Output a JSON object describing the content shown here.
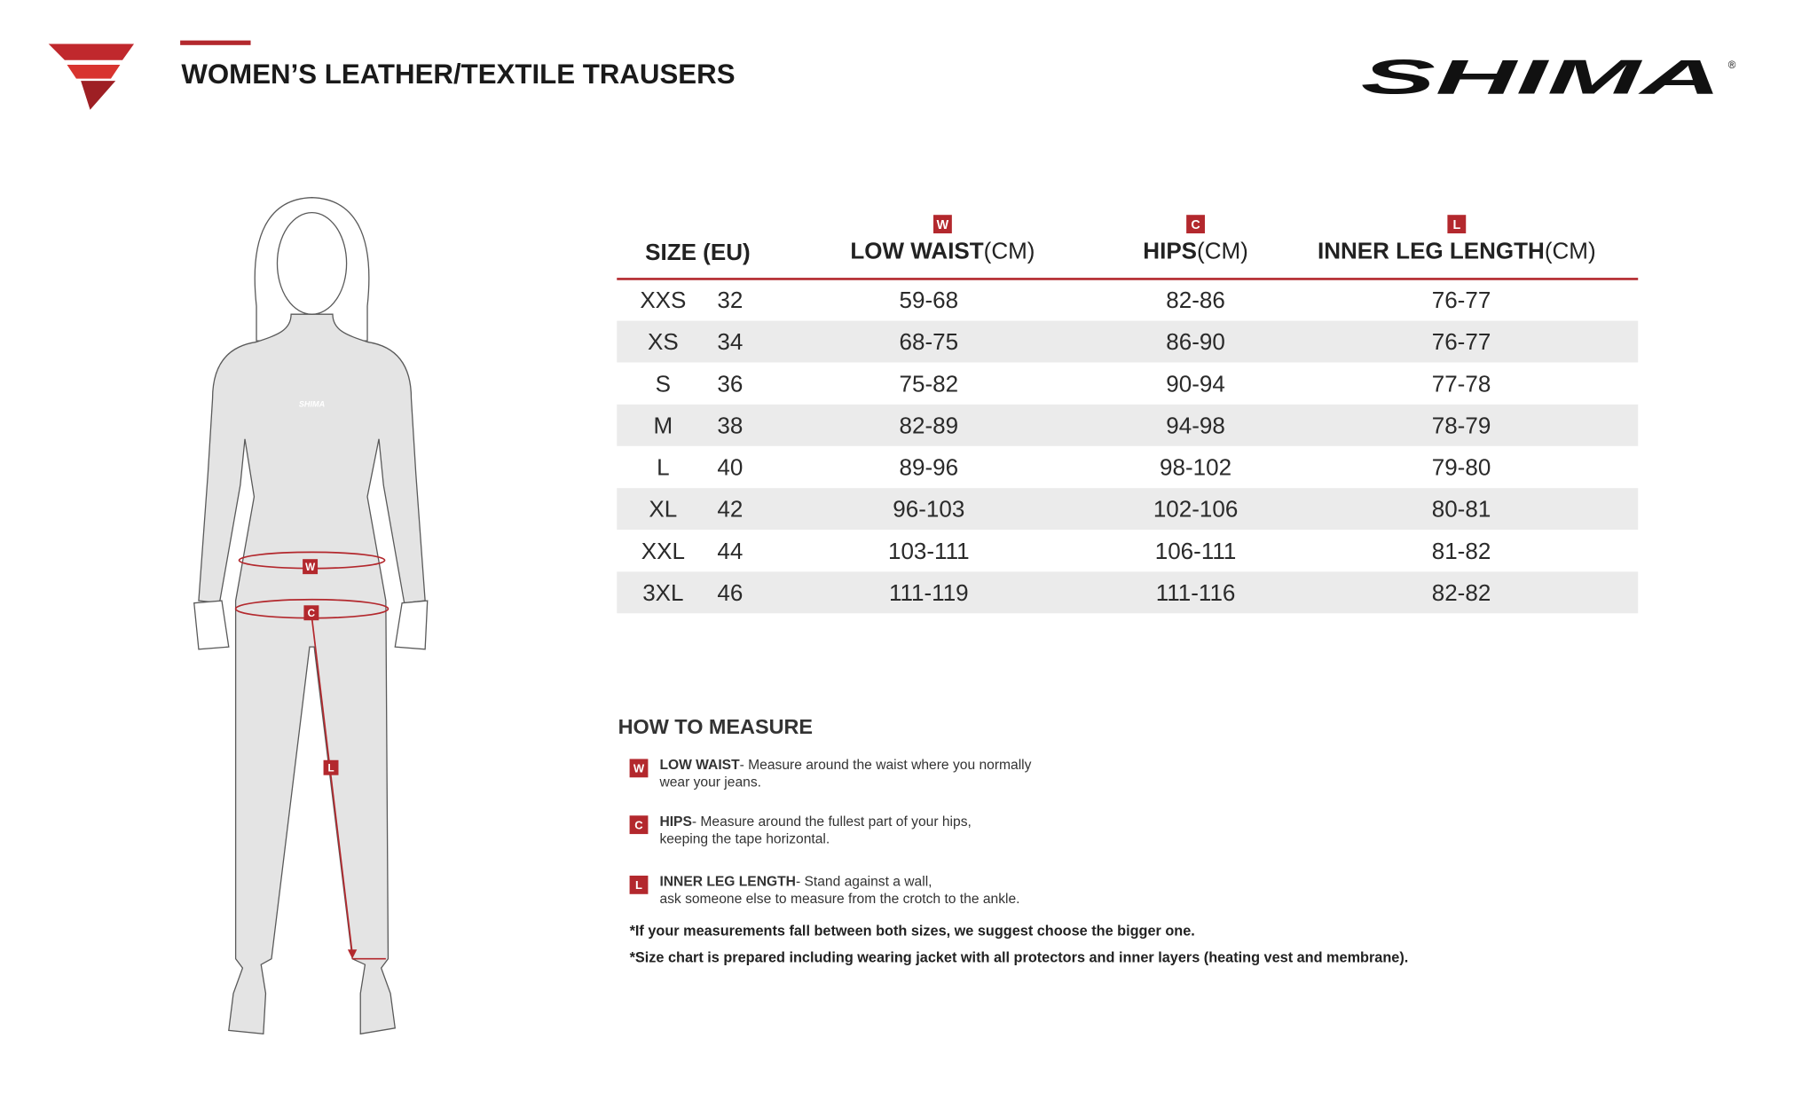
{
  "header": {
    "title": "WOMEN’S LEATHER/TEXTILE TRAUSERS",
    "brand": "SHIMA",
    "registered": "®"
  },
  "table": {
    "columns": [
      {
        "label": "SIZE (EU)"
      },
      {
        "marker": "W",
        "label": "LOW WAIST",
        "unit": "(CM)"
      },
      {
        "marker": "C",
        "label": "HIPS",
        "unit": "(CM)"
      },
      {
        "marker": "L",
        "label": "INNER LEG LENGTH",
        "unit": "(CM)"
      }
    ],
    "rows": [
      [
        "XXS",
        "32",
        "59-68",
        "82-86",
        "76-77"
      ],
      [
        "XS",
        "34",
        "68-75",
        "86-90",
        "76-77"
      ],
      [
        "S",
        "36",
        "75-82",
        "90-94",
        "77-78"
      ],
      [
        "M",
        "38",
        "82-89",
        "94-98",
        "78-79"
      ],
      [
        "L",
        "40",
        "89-96",
        "98-102",
        "79-80"
      ],
      [
        "XL",
        "42",
        "96-103",
        "102-106",
        "80-81"
      ],
      [
        "XXL",
        "44",
        "103-111",
        "106-111",
        "81-82"
      ],
      [
        "3XL",
        "46",
        "111-119",
        "111-116",
        "82-82"
      ]
    ]
  },
  "how_to_measure": {
    "title": "HOW TO MEASURE",
    "items": [
      {
        "marker": "W",
        "term": "LOW WAIST",
        "lines": [
          "- Measure around the waist where you normally",
          "wear your jeans."
        ]
      },
      {
        "marker": "C",
        "term": "HIPS",
        "lines": [
          "- Measure around the fullest part of your hips,",
          "keeping the tape horizontal."
        ]
      },
      {
        "marker": "L",
        "term": "INNER LEG LENGTH",
        "lines": [
          "- Stand against a wall,",
          "ask someone else to measure from the crotch to the ankle."
        ]
      }
    ],
    "notes": [
      "*If your measurements fall between both sizes, we suggest choose the bigger one.",
      "*Size chart is prepared including wearing jacket with all protectors and inner layers (heating vest and membrane)."
    ]
  }
}
